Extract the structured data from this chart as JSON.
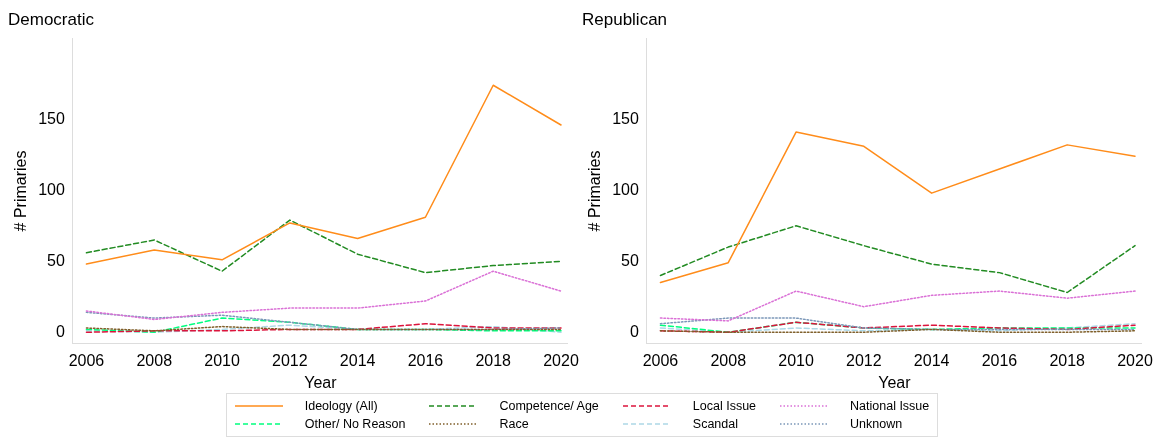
{
  "chart_data": [
    {
      "type": "line",
      "title": "Democratic",
      "xlabel": "Year",
      "ylabel": "# Primaries",
      "x": [
        2006,
        2008,
        2010,
        2012,
        2014,
        2016,
        2018,
        2020
      ],
      "xlim": [
        2005.6,
        2020.2
      ],
      "xticks": [
        2006,
        2008,
        2010,
        2012,
        2014,
        2016,
        2018,
        2020
      ],
      "ylim": [
        -8,
        207
      ],
      "yticks": [
        0,
        50,
        100,
        150
      ],
      "grid": false,
      "legend": "bottom",
      "marker": "none",
      "series": [
        {
          "name": "Ideology (All)",
          "color": "#ff8c1a",
          "line_style": "solid",
          "values": [
            48,
            58,
            51,
            77,
            66,
            81,
            174,
            146
          ]
        },
        {
          "name": "Competence/ Age",
          "color": "#228b22",
          "line_style": "dashed",
          "values": [
            56,
            65,
            43,
            79,
            55,
            42,
            47,
            50
          ]
        },
        {
          "name": "Local Issue",
          "color": "#dc143c",
          "line_style": "dashed",
          "values": [
            0,
            1,
            1,
            2,
            2,
            6,
            3,
            3
          ]
        },
        {
          "name": "National Issue",
          "color": "#da70d6",
          "line_style": "dotted",
          "values": [
            15,
            9,
            14,
            17,
            17,
            22,
            43,
            29
          ]
        },
        {
          "name": "Other/ No Reason",
          "color": "#00ff7f",
          "line_style": "dashed",
          "values": [
            2,
            0,
            10,
            7,
            2,
            2,
            1,
            1
          ]
        },
        {
          "name": "Race",
          "color": "#7f5f2a",
          "line_style": "dotted",
          "values": [
            3,
            1,
            4,
            2,
            2,
            2,
            2,
            2
          ]
        },
        {
          "name": "Scandal",
          "color": "#add8e6",
          "line_style": "dashed",
          "values": [
            1,
            0,
            2,
            5,
            2,
            2,
            4,
            0
          ]
        },
        {
          "name": "Unknown",
          "color": "#7b97b8",
          "line_style": "dotted",
          "values": [
            14,
            10,
            12,
            7,
            2,
            2,
            2,
            3
          ]
        }
      ]
    },
    {
      "type": "line",
      "title": "Republican",
      "xlabel": "Year",
      "ylabel": "# Primaries",
      "x": [
        2006,
        2008,
        2010,
        2012,
        2014,
        2016,
        2018,
        2020
      ],
      "xlim": [
        2005.6,
        2020.2
      ],
      "xticks": [
        2006,
        2008,
        2010,
        2012,
        2014,
        2016,
        2018,
        2020
      ],
      "ylim": [
        -8,
        207
      ],
      "yticks": [
        0,
        50,
        100,
        150
      ],
      "grid": false,
      "legend": "bottom",
      "marker": "none",
      "series": [
        {
          "name": "Ideology (All)",
          "color": "#ff8c1a",
          "line_style": "solid",
          "values": [
            35,
            49,
            141,
            131,
            98,
            115,
            132,
            124
          ]
        },
        {
          "name": "Competence/ Age",
          "color": "#228b22",
          "line_style": "dashed",
          "values": [
            40,
            60,
            75,
            61,
            48,
            42,
            28,
            61
          ]
        },
        {
          "name": "Local Issue",
          "color": "#dc143c",
          "line_style": "dashed",
          "values": [
            1,
            0,
            7,
            3,
            5,
            3,
            2,
            5
          ]
        },
        {
          "name": "National Issue",
          "color": "#da70d6",
          "line_style": "dotted",
          "values": [
            10,
            8,
            29,
            18,
            26,
            29,
            24,
            29
          ]
        },
        {
          "name": "Other/ No Reason",
          "color": "#00ff7f",
          "line_style": "dashed",
          "values": [
            5,
            0,
            7,
            3,
            2,
            3,
            3,
            3
          ]
        },
        {
          "name": "Race",
          "color": "#7f5f2a",
          "line_style": "dotted",
          "values": [
            1,
            0,
            0,
            0,
            2,
            0,
            0,
            1
          ]
        },
        {
          "name": "Scandal",
          "color": "#add8e6",
          "line_style": "dashed",
          "values": [
            3,
            0,
            3,
            1,
            2,
            1,
            3,
            6
          ]
        },
        {
          "name": "Unknown",
          "color": "#7b97b8",
          "line_style": "dotted",
          "values": [
            6,
            10,
            10,
            3,
            2,
            2,
            2,
            2
          ]
        }
      ]
    }
  ]
}
